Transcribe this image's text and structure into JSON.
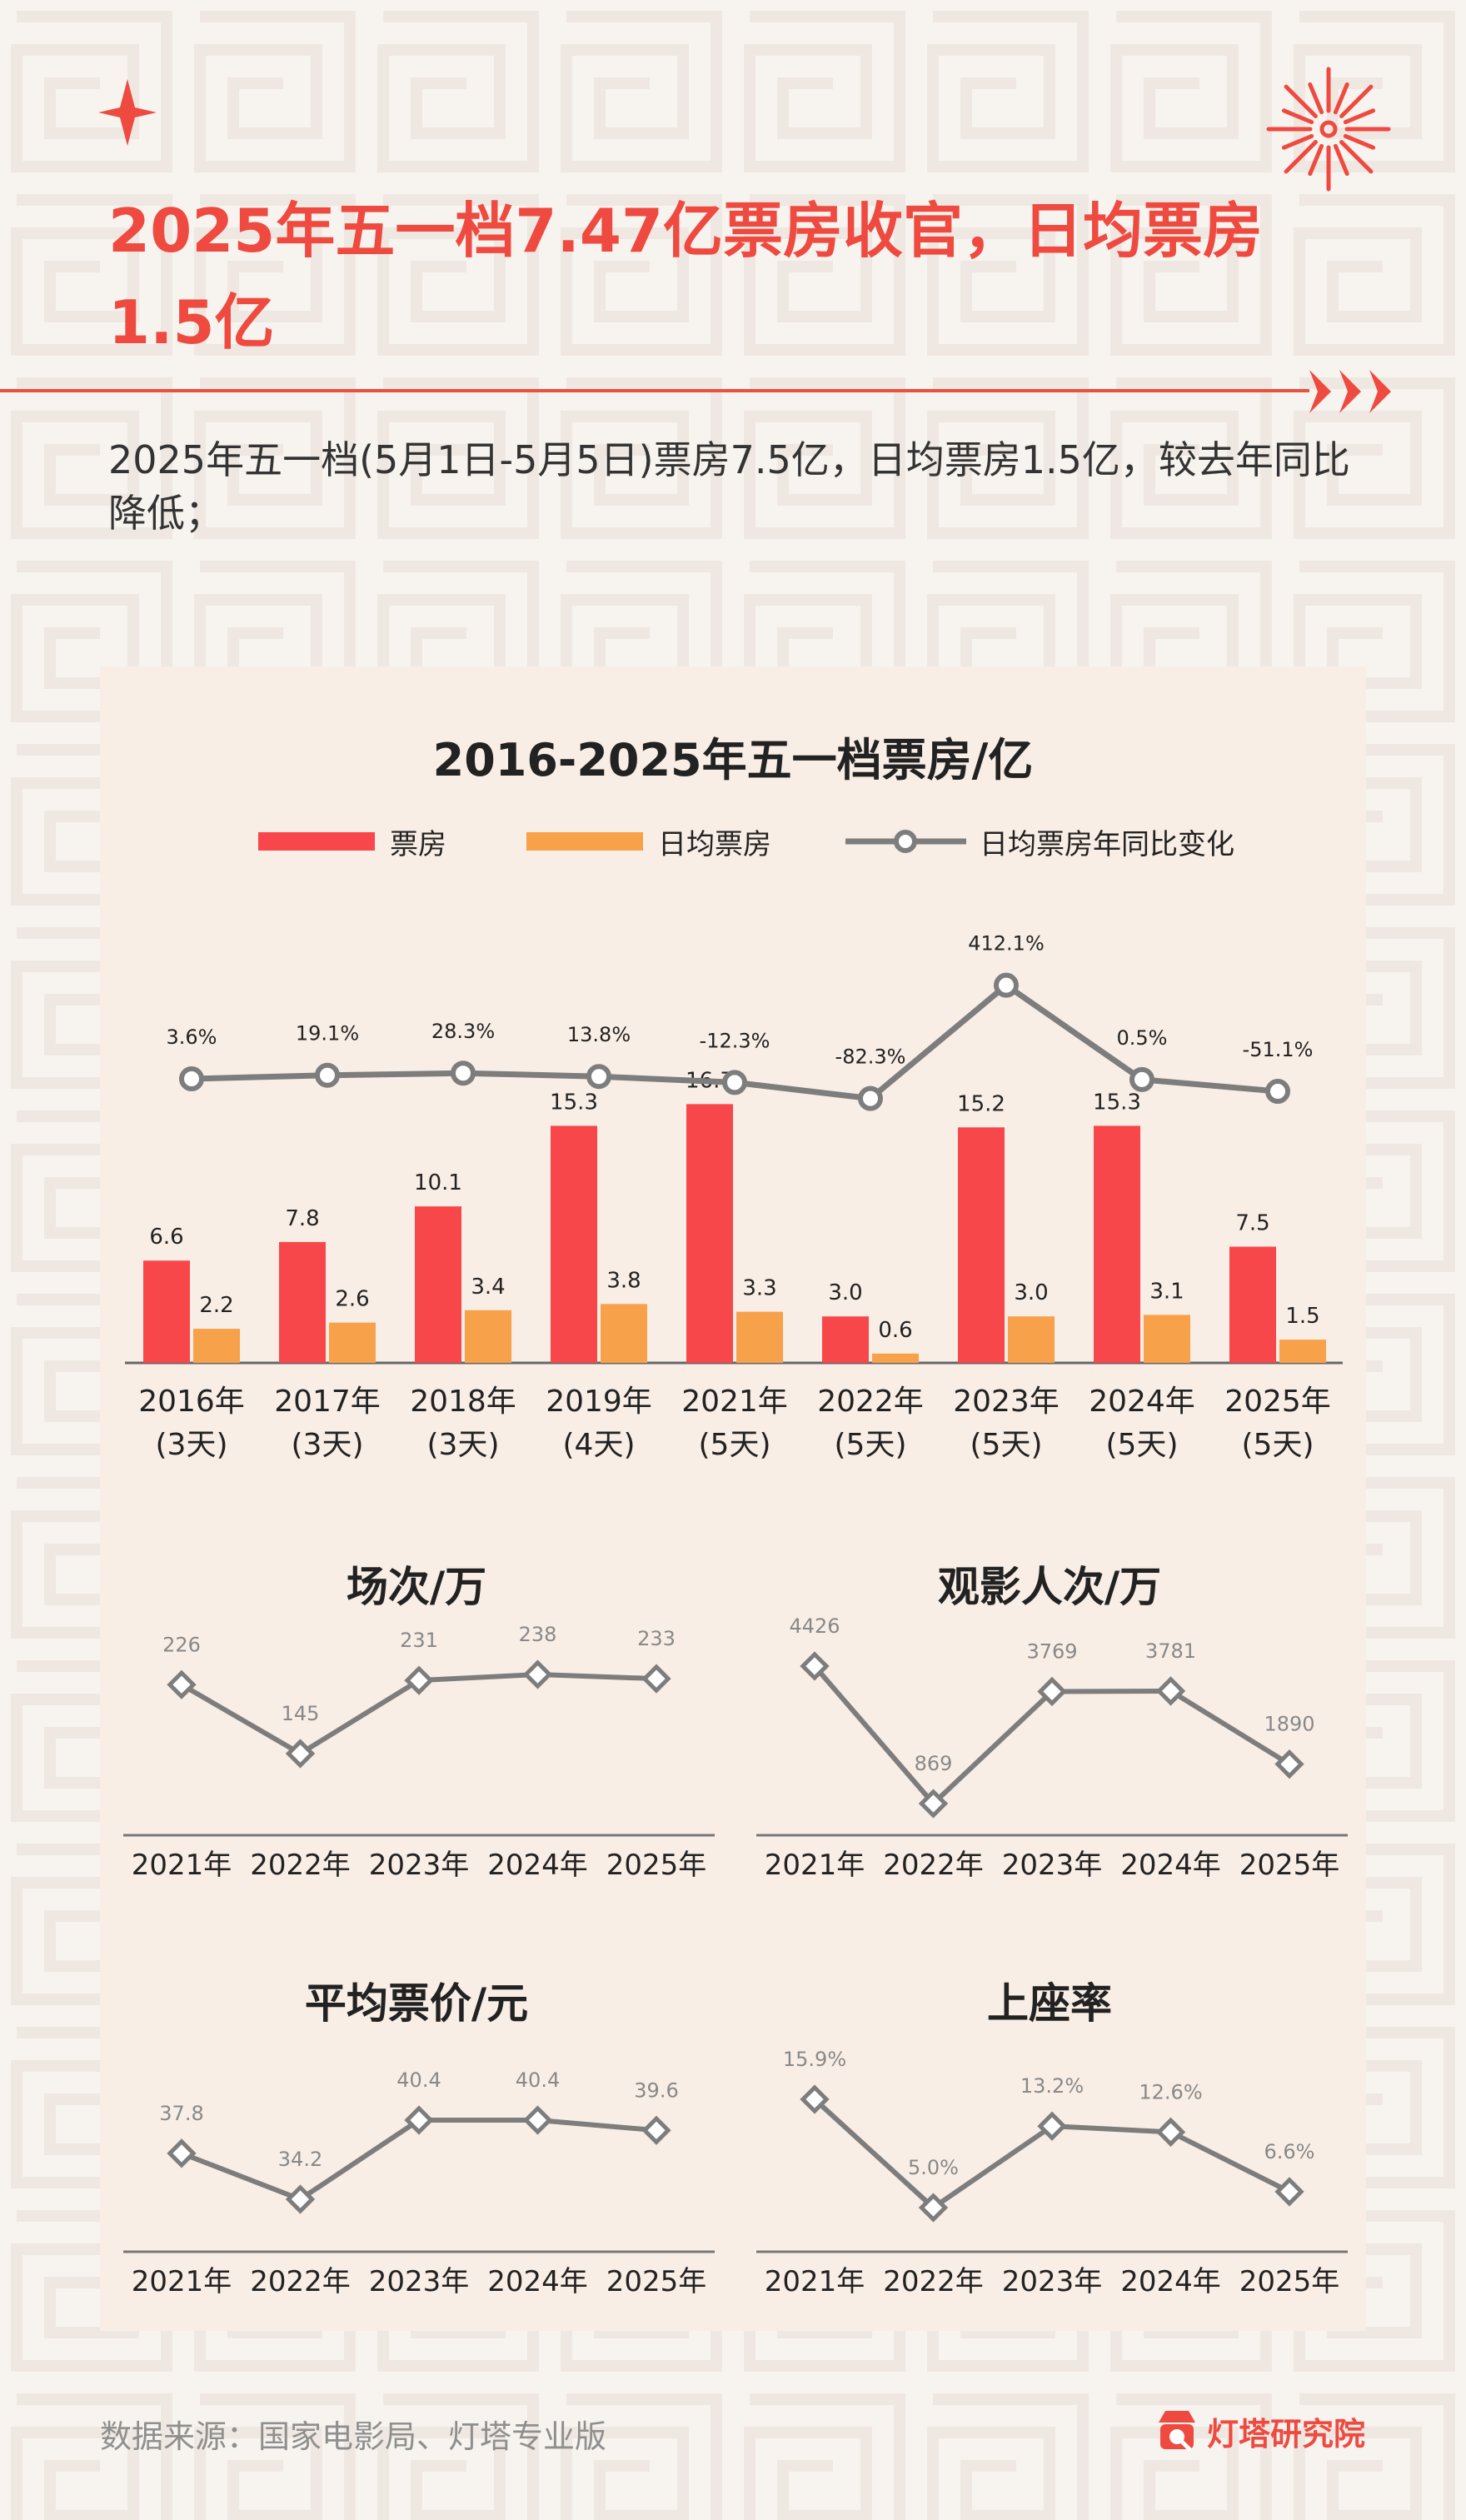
{
  "header": {
    "title": "2025年五一档7.47亿票房收官，日均票房1.5亿",
    "subtitle": "2025年五一档(5月1日-5月5日)票房7.5亿，日均票房1.5亿，较去年同比降低；"
  },
  "colors": {
    "accent": "#ef4a40",
    "bar_box_office": "#f7474a",
    "bar_daily": "#f7a14a",
    "line": "#7d7d7d",
    "card_bg": "#f9eee6",
    "page_bg": "#f7f3ef"
  },
  "icons": {
    "spark": "four-point-star-icon",
    "firework": "firework-icon",
    "arrows": "triple-arrow-icon",
    "brand": "brand-logo-icon"
  },
  "chart_data": [
    {
      "type": "bar",
      "title": "2016-2025年五一档票房/亿",
      "categories": [
        "2016年\n(3天)",
        "2017年\n(3天)",
        "2018年\n(3天)",
        "2019年\n(4天)",
        "2021年\n(5天)",
        "2022年\n(5天)",
        "2023年\n(5天)",
        "2024年\n(5天)",
        "2025年\n(5天)"
      ],
      "series": [
        {
          "name": "票房",
          "values": [
            6.6,
            7.8,
            10.1,
            15.3,
            16.7,
            3.0,
            15.2,
            15.3,
            7.5
          ]
        },
        {
          "name": "日均票房",
          "values": [
            2.2,
            2.6,
            3.4,
            3.8,
            3.3,
            0.6,
            3.0,
            3.1,
            1.5
          ]
        },
        {
          "name": "日均票房年同比变化",
          "type": "line",
          "values": [
            3.6,
            19.1,
            28.3,
            13.8,
            -12.3,
            -82.3,
            412.1,
            0.5,
            -51.1
          ],
          "labels": [
            "3.6%",
            "19.1%",
            "28.3%",
            "13.8%",
            "-12.3%",
            "-82.3%",
            "412.1%",
            "0.5%",
            "-51.1%"
          ]
        }
      ],
      "legend_position": "top"
    },
    {
      "type": "line",
      "title": "场次/万",
      "categories": [
        "2021年",
        "2022年",
        "2023年",
        "2024年",
        "2025年"
      ],
      "values": [
        226,
        145,
        231,
        238,
        233
      ],
      "labels": [
        "226",
        "145",
        "231",
        "238",
        "233"
      ]
    },
    {
      "type": "line",
      "title": "观影人次/万",
      "categories": [
        "2021年",
        "2022年",
        "2023年",
        "2024年",
        "2025年"
      ],
      "values": [
        4426,
        869,
        3769,
        3781,
        1890
      ],
      "labels": [
        "4426",
        "869",
        "3769",
        "3781",
        "1890"
      ]
    },
    {
      "type": "line",
      "title": "平均票价/元",
      "categories": [
        "2021年",
        "2022年",
        "2023年",
        "2024年",
        "2025年"
      ],
      "values": [
        37.8,
        34.2,
        40.4,
        40.4,
        39.6
      ],
      "labels": [
        "37.8",
        "34.2",
        "40.4",
        "40.4",
        "39.6"
      ]
    },
    {
      "type": "line",
      "title": "上座率",
      "categories": [
        "2021年",
        "2022年",
        "2023年",
        "2024年",
        "2025年"
      ],
      "values": [
        15.9,
        5.0,
        13.2,
        12.6,
        6.6
      ],
      "labels": [
        "15.9%",
        "5.0%",
        "13.2%",
        "12.6%",
        "6.6%"
      ]
    }
  ],
  "footer": {
    "source": "数据来源：国家电影局、灯塔专业版",
    "brand": "灯塔研究院"
  }
}
